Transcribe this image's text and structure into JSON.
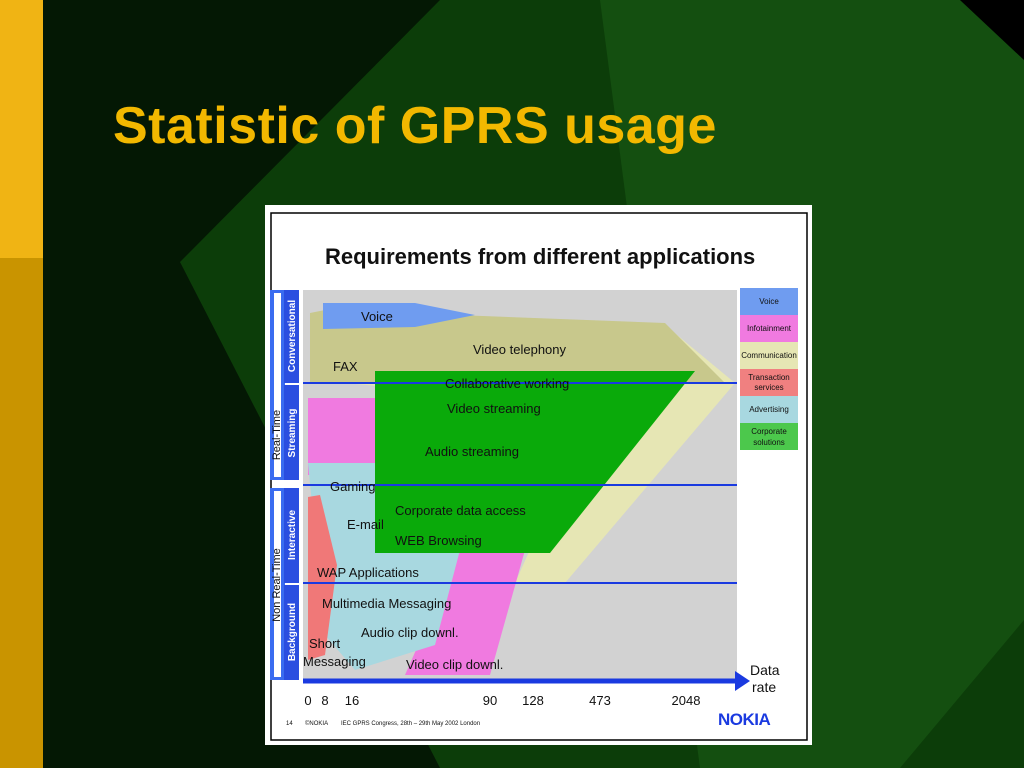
{
  "slide": {
    "title": "Statistic of GPRS usage",
    "colors": {
      "title": "#f2b800",
      "background": "#0b3a08",
      "accent_bar": "#f0b414"
    }
  },
  "diagram": {
    "title": "Requirements from different applications",
    "categories": {
      "real_time": "Real-Time",
      "non_real_time": "Non Real-Time",
      "conversational": "Conversational",
      "streaming": "Streaming",
      "interactive": "Interactive",
      "background": "Background"
    },
    "apps": {
      "voice": "Voice",
      "fax": "FAX",
      "video_telephony": "Video telephony",
      "collaborative_working": "Collaborative working",
      "video_streaming": "Video streaming",
      "audio_streaming": "Audio streaming",
      "gaming": "Gaming",
      "corporate_data_access": "Corporate data access",
      "email": "E-mail",
      "web_browsing": "WEB Browsing",
      "wap_applications": "WAP Applications",
      "multimedia_messaging": "Multimedia Messaging",
      "audio_clip_download": "Audio clip downl.",
      "short_messaging_1": "Short",
      "short_messaging_2": "Messaging",
      "video_clip_download": "Video clip downl."
    },
    "legend": [
      {
        "label": "Voice",
        "color": "#6f9cf0"
      },
      {
        "label": "Infotainment",
        "color": "#f07ae0"
      },
      {
        "label": "Communication",
        "color": "#e6e6b4"
      },
      {
        "label_1": "Transaction",
        "label_2": "services",
        "color": "#f08080"
      },
      {
        "label": "Advertising",
        "color": "#a8d8e0"
      },
      {
        "label_1": "Corporate",
        "label_2": "solutions",
        "color": "#4cc84c"
      }
    ],
    "axis": {
      "label_1": "Data",
      "label_2": "rate",
      "ticks": [
        "0",
        "8",
        "16",
        "90",
        "128",
        "473",
        "2048"
      ]
    },
    "footer": {
      "page": "14",
      "copyright": "©NOKIA",
      "event": "IEC GPRS Congress, 28th – 29th May 2002 London",
      "logo": "NOKIA"
    }
  }
}
